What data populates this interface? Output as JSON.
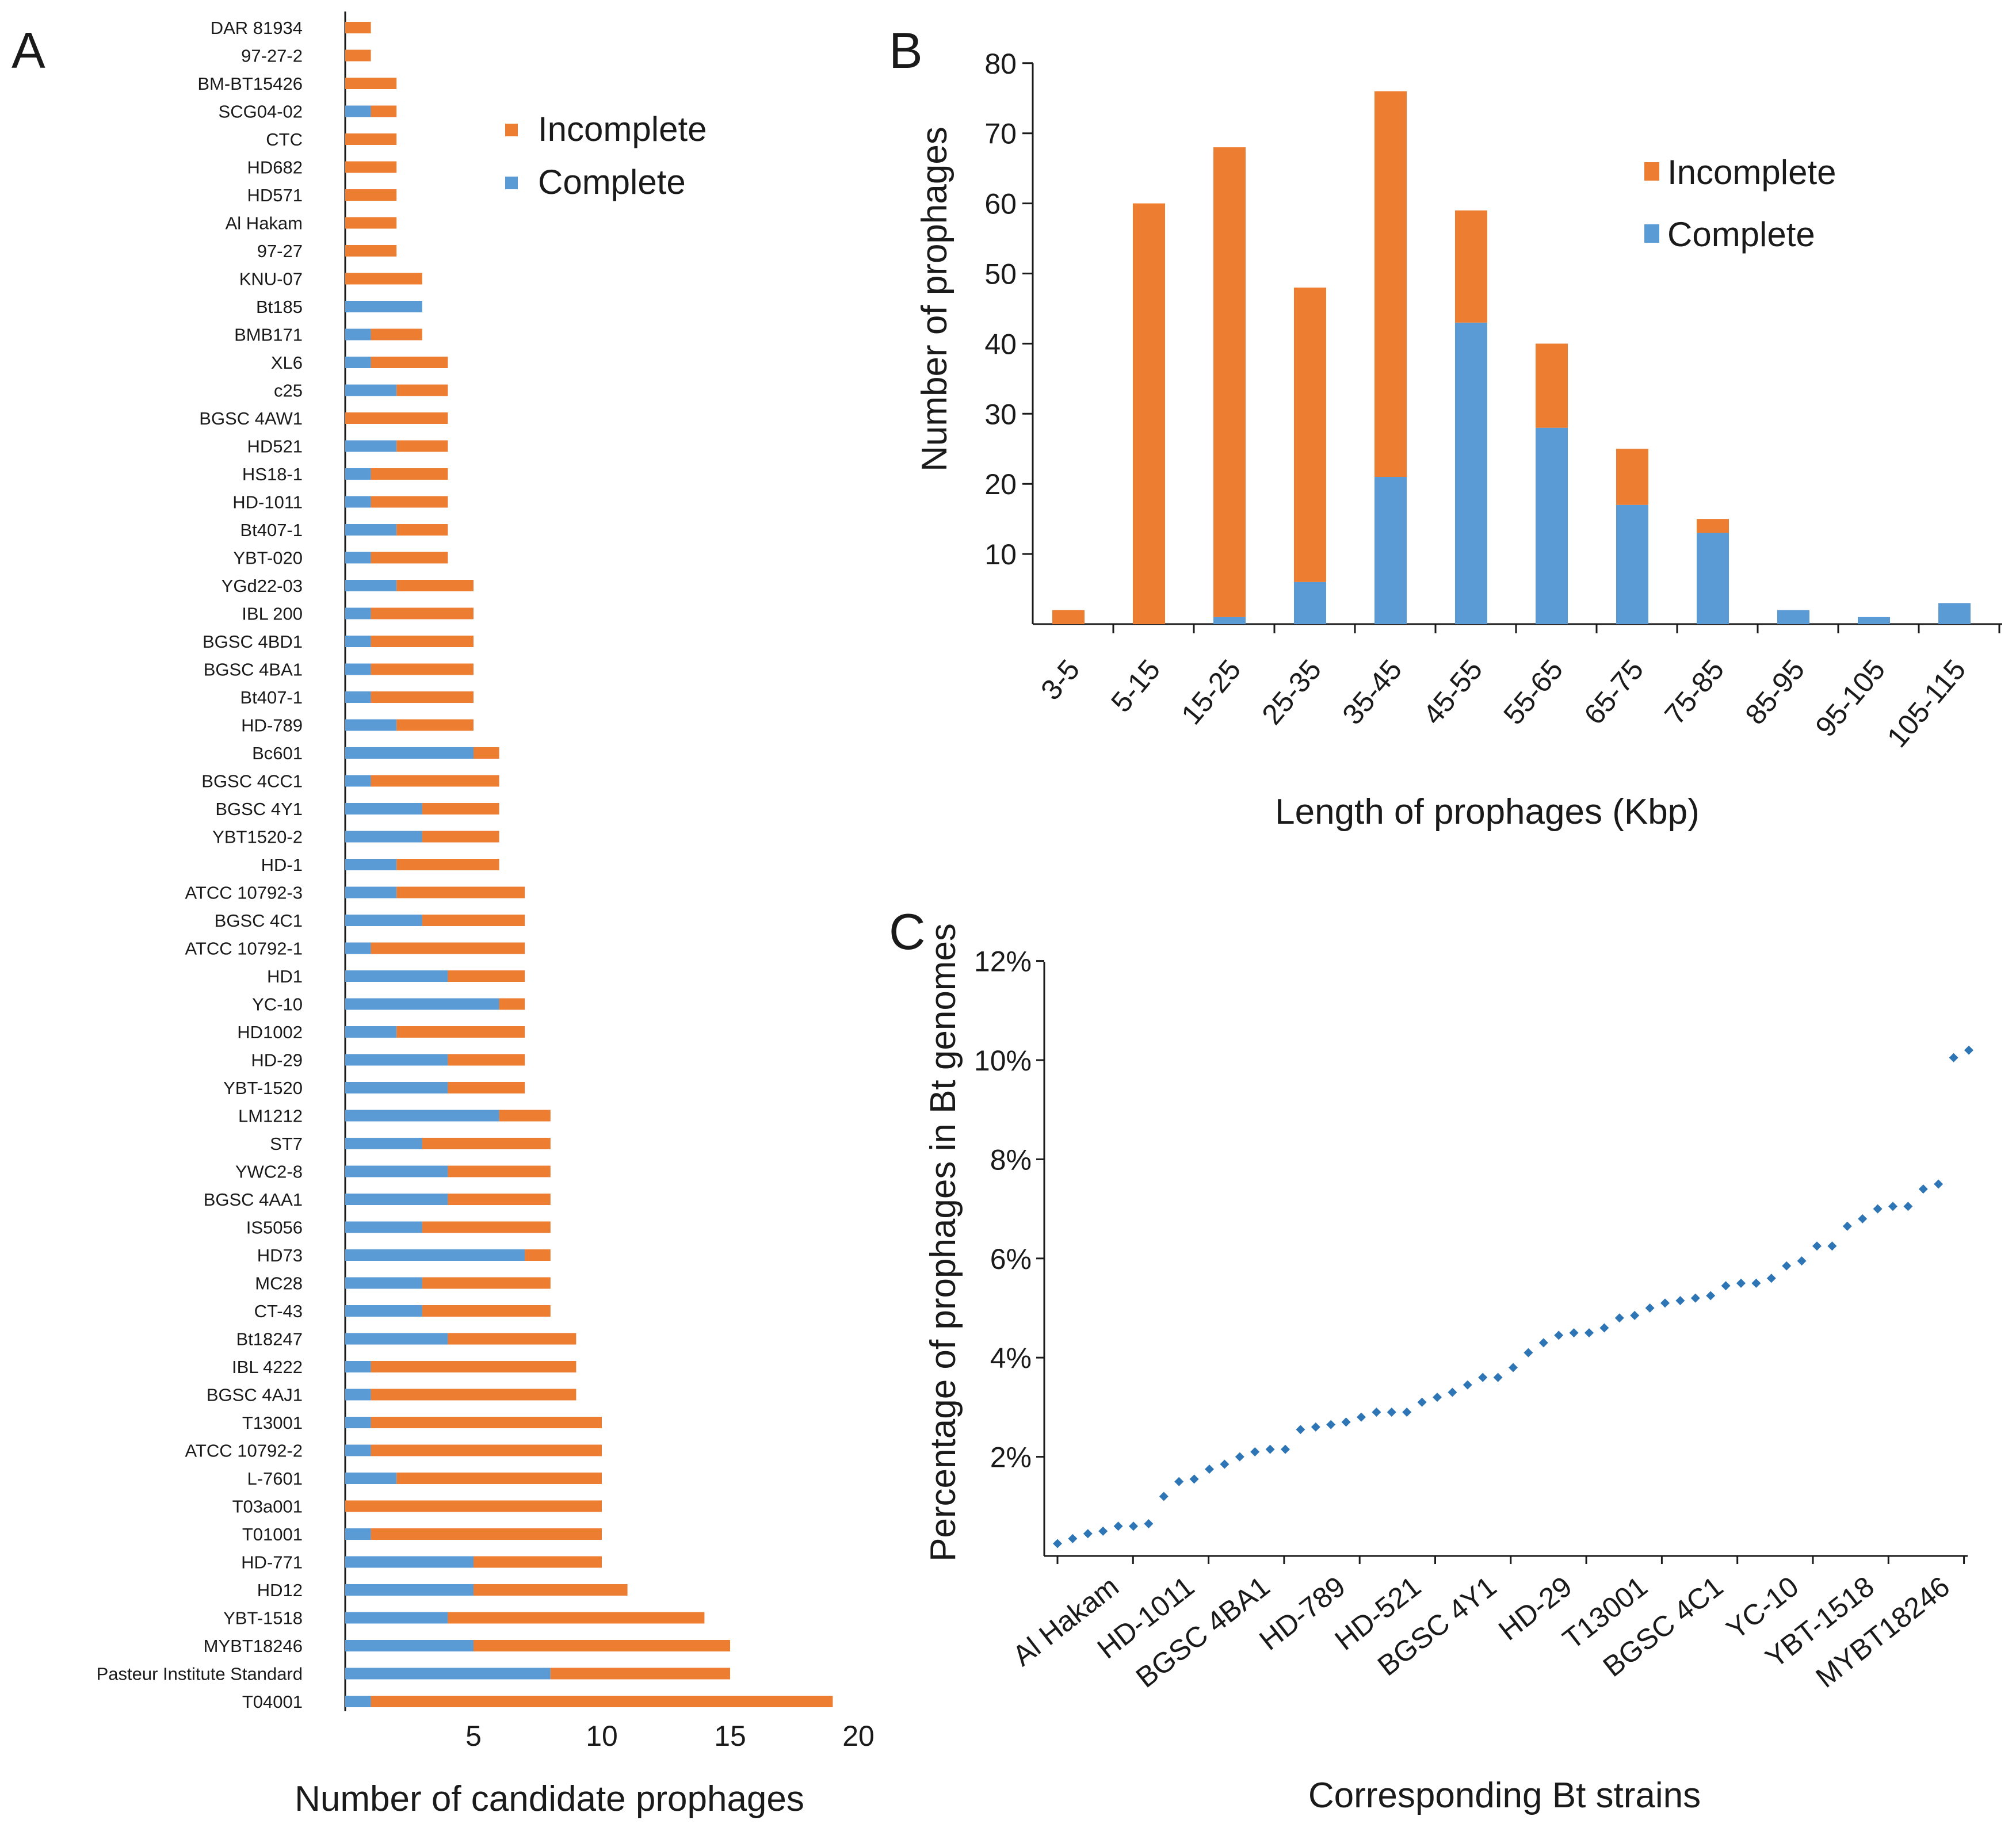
{
  "colors": {
    "complete": "#5B9BD5",
    "incomplete": "#ED7D31",
    "axis": "#1a1a1a"
  },
  "panels": {
    "a": "A",
    "b": "B",
    "c": "C"
  },
  "chart_data": [
    {
      "type": "bar",
      "orientation": "horizontal",
      "stacked": true,
      "panel": "A",
      "title": "",
      "xlabel": "Number of candidate prophages",
      "ylabel": "",
      "xlim": [
        0,
        20
      ],
      "xticks": [
        "5",
        "10",
        "15",
        "20"
      ],
      "legend": [
        "Incomplete",
        "Complete"
      ],
      "legend_position": "top-right",
      "categories": [
        "DAR 81934",
        "97-27-2",
        "BM-BT15426",
        "SCG04-02",
        "CTC",
        "HD682",
        "HD571",
        "Al Hakam",
        "97-27",
        "KNU-07",
        "Bt185",
        "BMB171",
        "XL6",
        "c25",
        "BGSC 4AW1",
        "HD521",
        "HS18-1",
        "HD-1011",
        "Bt407-1",
        "YBT-020",
        "YGd22-03",
        "IBL 200",
        "BGSC 4BD1",
        "BGSC 4BA1",
        "Bt407-1",
        "HD-789",
        "Bc601",
        "BGSC 4CC1",
        "BGSC 4Y1",
        "YBT1520-2",
        "HD-1",
        "ATCC 10792-3",
        "BGSC 4C1",
        "ATCC 10792-1",
        "HD1",
        "YC-10",
        "HD1002",
        "HD-29",
        "YBT-1520",
        "LM1212",
        "ST7",
        "YWC2-8",
        "BGSC 4AA1",
        "IS5056",
        "HD73",
        "MC28",
        "CT-43",
        "Bt18247",
        "IBL 4222",
        "BGSC 4AJ1",
        "T13001",
        "ATCC 10792-2",
        "L-7601",
        "T03a001",
        "T01001",
        "HD-771",
        "HD12",
        "YBT-1518",
        "MYBT18246",
        "Pasteur Institute Standard",
        "T04001"
      ],
      "series": [
        {
          "name": "Complete",
          "values": [
            0,
            0,
            0,
            1,
            0,
            0,
            0,
            0,
            0,
            0,
            3,
            1,
            1,
            2,
            0,
            2,
            1,
            1,
            2,
            1,
            2,
            1,
            1,
            1,
            1,
            2,
            5,
            1,
            3,
            3,
            2,
            2,
            3,
            1,
            4,
            6,
            2,
            4,
            4,
            6,
            3,
            4,
            4,
            3,
            7,
            3,
            3,
            4,
            1,
            1,
            1,
            1,
            2,
            0,
            1,
            5,
            5,
            4,
            5,
            8,
            1
          ]
        },
        {
          "name": "Incomplete",
          "values": [
            1,
            1,
            2,
            1,
            2,
            2,
            2,
            2,
            2,
            3,
            0,
            2,
            3,
            2,
            4,
            2,
            3,
            3,
            2,
            3,
            3,
            4,
            4,
            4,
            4,
            3,
            1,
            5,
            3,
            3,
            4,
            5,
            4,
            6,
            3,
            1,
            5,
            3,
            3,
            2,
            5,
            4,
            4,
            5,
            1,
            5,
            5,
            5,
            8,
            8,
            9,
            9,
            8,
            10,
            9,
            5,
            6,
            10,
            10,
            7,
            18
          ]
        }
      ]
    },
    {
      "type": "bar",
      "stacked": true,
      "panel": "B",
      "title": "",
      "xlabel": "Length of prophages (Kbp)",
      "ylabel": "Number of prophages",
      "ylim": [
        0,
        80
      ],
      "yticks": [
        "10",
        "20",
        "30",
        "40",
        "50",
        "60",
        "70",
        "80"
      ],
      "legend": [
        "Incomplete",
        "Complete"
      ],
      "legend_position": "top-right",
      "categories": [
        "3-5",
        "5-15",
        "15-25",
        "25-35",
        "35-45",
        "45-55",
        "55-65",
        "65-75",
        "75-85",
        "85-95",
        "95-105",
        "105-115"
      ],
      "series": [
        {
          "name": "Complete",
          "values": [
            0,
            0,
            1,
            6,
            21,
            43,
            28,
            17,
            13,
            2,
            1,
            3
          ]
        },
        {
          "name": "Incomplete",
          "values": [
            2,
            60,
            67,
            42,
            55,
            16,
            12,
            8,
            2,
            0,
            0,
            0
          ]
        }
      ]
    },
    {
      "type": "scatter",
      "panel": "C",
      "title": "",
      "xlabel": "Corresponding Bt strains",
      "ylabel": "Percentage of prophages in Bt genomes",
      "ylim": [
        0,
        12
      ],
      "yticks": [
        "2%",
        "4%",
        "6%",
        "8%",
        "10%",
        "12%"
      ],
      "xtick_labels": [
        "Al Hakam",
        "HD-1011",
        "BGSC 4BA1",
        "HD-789",
        "HD-521",
        "BGSC 4Y1",
        "HD-29",
        "T13001",
        "BGSC 4C1",
        "YC-10",
        "YBT-1518",
        "MYBT18246"
      ],
      "values": [
        0.25,
        0.35,
        0.45,
        0.5,
        0.6,
        0.6,
        0.65,
        1.2,
        1.5,
        1.55,
        1.75,
        1.85,
        2.0,
        2.1,
        2.15,
        2.15,
        2.55,
        2.6,
        2.65,
        2.7,
        2.8,
        2.9,
        2.9,
        2.9,
        3.1,
        3.2,
        3.3,
        3.45,
        3.6,
        3.6,
        3.8,
        4.1,
        4.3,
        4.45,
        4.5,
        4.5,
        4.6,
        4.8,
        4.85,
        5.0,
        5.1,
        5.15,
        5.2,
        5.25,
        5.45,
        5.5,
        5.5,
        5.6,
        5.85,
        5.95,
        6.25,
        6.25,
        6.65,
        6.8,
        7.0,
        7.05,
        7.05,
        7.4,
        7.5,
        10.05,
        10.2
      ]
    }
  ]
}
